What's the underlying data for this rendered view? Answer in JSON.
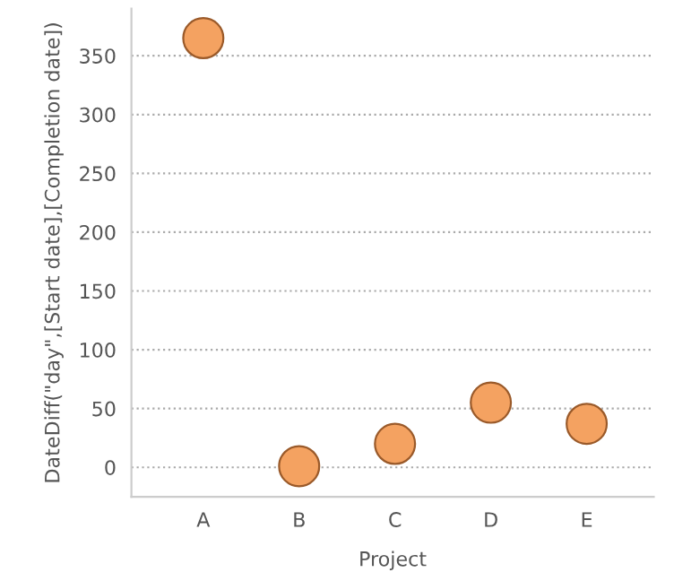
{
  "chart_data": {
    "type": "scatter",
    "xlabel": "Project",
    "ylabel": "DateDiff(\"day\",[Start date],[Completion date])",
    "categories": [
      "A",
      "B",
      "C",
      "D",
      "E"
    ],
    "series": [
      {
        "color": "#f4a261",
        "values": [
          365,
          1,
          20,
          55,
          37
        ]
      }
    ],
    "ylim": [
      -25,
      390
    ],
    "yticks": [
      0,
      50,
      100,
      150,
      200,
      250,
      300,
      350
    ],
    "grid": "y",
    "marker": "circle",
    "legend": false
  }
}
